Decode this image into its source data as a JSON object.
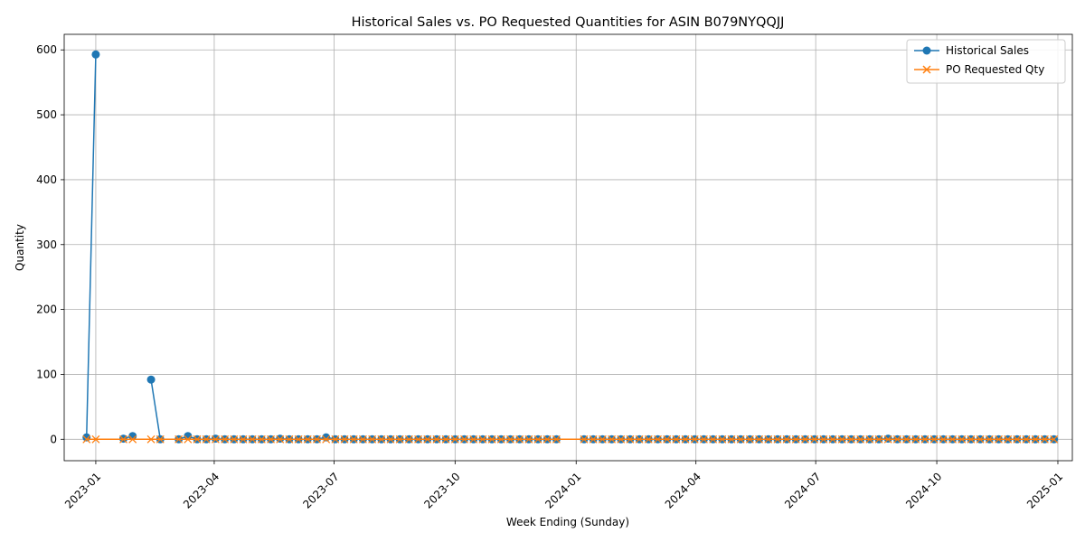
{
  "chart_data": {
    "type": "line",
    "title": "Historical Sales vs. PO Requested Quantities for ASIN B079NYQQJJ",
    "xlabel": "Week Ending (Sunday)",
    "ylabel": "Quantity",
    "xlim": [
      "2022-12-08",
      "2025-01-12"
    ],
    "ylim": [
      -33,
      624
    ],
    "x_ticks": [
      "2023-01",
      "2023-04",
      "2023-07",
      "2023-10",
      "2024-01",
      "2024-04",
      "2024-07",
      "2024-10",
      "2025-01"
    ],
    "y_ticks": [
      0,
      100,
      200,
      300,
      400,
      500,
      600
    ],
    "grid": true,
    "legend_position": "top-right",
    "series": [
      {
        "name": "Historical Sales",
        "color": "#1f77b4",
        "marker": "circle",
        "points": [
          [
            "2022-12-25",
            3
          ],
          [
            "2023-01-01",
            593
          ],
          null,
          [
            "2023-01-22",
            1
          ],
          [
            "2023-01-29",
            5
          ],
          null,
          [
            "2023-02-12",
            92
          ],
          [
            "2023-02-19",
            0
          ],
          null,
          [
            "2023-03-05",
            0
          ],
          [
            "2023-03-12",
            5
          ],
          [
            "2023-03-19",
            0
          ],
          [
            "2023-03-26",
            0
          ],
          [
            "2023-04-02",
            1
          ],
          [
            "2023-04-09",
            0
          ],
          [
            "2023-04-16",
            0
          ],
          [
            "2023-04-23",
            0
          ],
          [
            "2023-04-30",
            0
          ],
          [
            "2023-05-07",
            0
          ],
          [
            "2023-05-14",
            0
          ],
          [
            "2023-05-21",
            1
          ],
          [
            "2023-05-28",
            0
          ],
          [
            "2023-06-04",
            0
          ],
          [
            "2023-06-11",
            0
          ],
          [
            "2023-06-18",
            0
          ],
          [
            "2023-06-25",
            3
          ],
          [
            "2023-07-02",
            0
          ],
          [
            "2023-07-09",
            0
          ],
          [
            "2023-07-16",
            0
          ],
          [
            "2023-07-23",
            0
          ],
          [
            "2023-07-30",
            0
          ],
          [
            "2023-08-06",
            0
          ],
          [
            "2023-08-13",
            0
          ],
          [
            "2023-08-20",
            0
          ],
          [
            "2023-08-27",
            0
          ],
          [
            "2023-09-03",
            0
          ],
          [
            "2023-09-10",
            0
          ],
          [
            "2023-09-17",
            0
          ],
          [
            "2023-09-24",
            0
          ],
          [
            "2023-10-01",
            0
          ],
          [
            "2023-10-08",
            0
          ],
          [
            "2023-10-15",
            0
          ],
          [
            "2023-10-22",
            0
          ],
          [
            "2023-10-29",
            0
          ],
          [
            "2023-11-05",
            0
          ],
          [
            "2023-11-12",
            0
          ],
          [
            "2023-11-19",
            0
          ],
          [
            "2023-11-26",
            0
          ],
          [
            "2023-12-03",
            0
          ],
          [
            "2023-12-10",
            0
          ],
          [
            "2023-12-17",
            0
          ],
          null,
          [
            "2024-01-07",
            0
          ],
          [
            "2024-01-14",
            0
          ],
          [
            "2024-01-21",
            0
          ],
          [
            "2024-01-28",
            0
          ],
          [
            "2024-02-04",
            0
          ],
          [
            "2024-02-11",
            0
          ],
          [
            "2024-02-18",
            0
          ],
          [
            "2024-02-25",
            0
          ],
          [
            "2024-03-03",
            0
          ],
          [
            "2024-03-10",
            0
          ],
          [
            "2024-03-17",
            0
          ],
          [
            "2024-03-24",
            0
          ],
          [
            "2024-03-31",
            0
          ],
          [
            "2024-04-07",
            0
          ],
          [
            "2024-04-14",
            0
          ],
          [
            "2024-04-21",
            0
          ],
          [
            "2024-04-28",
            0
          ],
          [
            "2024-05-05",
            0
          ],
          [
            "2024-05-12",
            0
          ],
          [
            "2024-05-19",
            0
          ],
          [
            "2024-05-26",
            0
          ],
          [
            "2024-06-02",
            0
          ],
          [
            "2024-06-09",
            0
          ],
          [
            "2024-06-16",
            0
          ],
          [
            "2024-06-23",
            0
          ],
          [
            "2024-06-30",
            0
          ],
          [
            "2024-07-07",
            0
          ],
          [
            "2024-07-14",
            0
          ],
          [
            "2024-07-21",
            0
          ],
          [
            "2024-07-28",
            0
          ],
          [
            "2024-08-04",
            0
          ],
          [
            "2024-08-11",
            0
          ],
          [
            "2024-08-18",
            0
          ],
          [
            "2024-08-25",
            1
          ],
          [
            "2024-09-01",
            0
          ],
          [
            "2024-09-08",
            0
          ],
          [
            "2024-09-15",
            0
          ],
          [
            "2024-09-22",
            0
          ],
          [
            "2024-09-29",
            0
          ],
          [
            "2024-10-06",
            0
          ],
          [
            "2024-10-13",
            0
          ],
          [
            "2024-10-20",
            0
          ],
          [
            "2024-10-27",
            0
          ],
          [
            "2024-11-03",
            0
          ],
          [
            "2024-11-10",
            0
          ],
          [
            "2024-11-17",
            0
          ],
          [
            "2024-11-24",
            0
          ],
          [
            "2024-12-01",
            0
          ],
          [
            "2024-12-08",
            0
          ],
          [
            "2024-12-15",
            0
          ],
          [
            "2024-12-22",
            0
          ],
          [
            "2024-12-29",
            0
          ]
        ]
      },
      {
        "name": "PO Requested Qty",
        "color": "#ff7f0e",
        "marker": "x",
        "points": [
          [
            "2022-12-25",
            0
          ],
          [
            "2023-01-01",
            0
          ],
          [
            "2023-01-22",
            0
          ],
          [
            "2023-01-29",
            0
          ],
          [
            "2023-02-12",
            0
          ],
          [
            "2023-02-19",
            0
          ],
          [
            "2023-03-05",
            0
          ],
          [
            "2023-03-12",
            0
          ],
          [
            "2023-03-19",
            0
          ],
          [
            "2023-03-26",
            0
          ],
          [
            "2023-04-02",
            0
          ],
          [
            "2023-04-09",
            0
          ],
          [
            "2023-04-16",
            0
          ],
          [
            "2023-04-23",
            0
          ],
          [
            "2023-04-30",
            0
          ],
          [
            "2023-05-07",
            0
          ],
          [
            "2023-05-14",
            0
          ],
          [
            "2023-05-21",
            0
          ],
          [
            "2023-05-28",
            0
          ],
          [
            "2023-06-04",
            0
          ],
          [
            "2023-06-11",
            0
          ],
          [
            "2023-06-18",
            0
          ],
          [
            "2023-06-25",
            0
          ],
          [
            "2023-07-02",
            0
          ],
          [
            "2023-07-09",
            0
          ],
          [
            "2023-07-16",
            0
          ],
          [
            "2023-07-23",
            0
          ],
          [
            "2023-07-30",
            0
          ],
          [
            "2023-08-06",
            0
          ],
          [
            "2023-08-13",
            0
          ],
          [
            "2023-08-20",
            0
          ],
          [
            "2023-08-27",
            0
          ],
          [
            "2023-09-03",
            0
          ],
          [
            "2023-09-10",
            0
          ],
          [
            "2023-09-17",
            0
          ],
          [
            "2023-09-24",
            0
          ],
          [
            "2023-10-01",
            0
          ],
          [
            "2023-10-08",
            0
          ],
          [
            "2023-10-15",
            0
          ],
          [
            "2023-10-22",
            0
          ],
          [
            "2023-10-29",
            0
          ],
          [
            "2023-11-05",
            0
          ],
          [
            "2023-11-12",
            0
          ],
          [
            "2023-11-19",
            0
          ],
          [
            "2023-11-26",
            0
          ],
          [
            "2023-12-03",
            0
          ],
          [
            "2023-12-10",
            0
          ],
          [
            "2023-12-17",
            0
          ],
          [
            "2024-01-07",
            0
          ],
          [
            "2024-01-14",
            0
          ],
          [
            "2024-01-21",
            0
          ],
          [
            "2024-01-28",
            0
          ],
          [
            "2024-02-04",
            0
          ],
          [
            "2024-02-11",
            0
          ],
          [
            "2024-02-18",
            0
          ],
          [
            "2024-02-25",
            0
          ],
          [
            "2024-03-03",
            0
          ],
          [
            "2024-03-10",
            0
          ],
          [
            "2024-03-17",
            0
          ],
          [
            "2024-03-24",
            0
          ],
          [
            "2024-03-31",
            0
          ],
          [
            "2024-04-07",
            0
          ],
          [
            "2024-04-14",
            0
          ],
          [
            "2024-04-21",
            0
          ],
          [
            "2024-04-28",
            0
          ],
          [
            "2024-05-05",
            0
          ],
          [
            "2024-05-12",
            0
          ],
          [
            "2024-05-19",
            0
          ],
          [
            "2024-05-26",
            0
          ],
          [
            "2024-06-02",
            0
          ],
          [
            "2024-06-09",
            0
          ],
          [
            "2024-06-16",
            0
          ],
          [
            "2024-06-23",
            0
          ],
          [
            "2024-06-30",
            0
          ],
          [
            "2024-07-07",
            0
          ],
          [
            "2024-07-14",
            0
          ],
          [
            "2024-07-21",
            0
          ],
          [
            "2024-07-28",
            0
          ],
          [
            "2024-08-04",
            0
          ],
          [
            "2024-08-11",
            0
          ],
          [
            "2024-08-18",
            0
          ],
          [
            "2024-08-25",
            0
          ],
          [
            "2024-09-01",
            0
          ],
          [
            "2024-09-08",
            0
          ],
          [
            "2024-09-15",
            0
          ],
          [
            "2024-09-22",
            0
          ],
          [
            "2024-09-29",
            0
          ],
          [
            "2024-10-06",
            0
          ],
          [
            "2024-10-13",
            0
          ],
          [
            "2024-10-20",
            0
          ],
          [
            "2024-10-27",
            0
          ],
          [
            "2024-11-03",
            0
          ],
          [
            "2024-11-10",
            0
          ],
          [
            "2024-11-17",
            0
          ],
          [
            "2024-11-24",
            0
          ],
          [
            "2024-12-01",
            0
          ],
          [
            "2024-12-08",
            0
          ],
          [
            "2024-12-15",
            0
          ],
          [
            "2024-12-22",
            0
          ],
          [
            "2024-12-29",
            0
          ]
        ]
      }
    ]
  }
}
